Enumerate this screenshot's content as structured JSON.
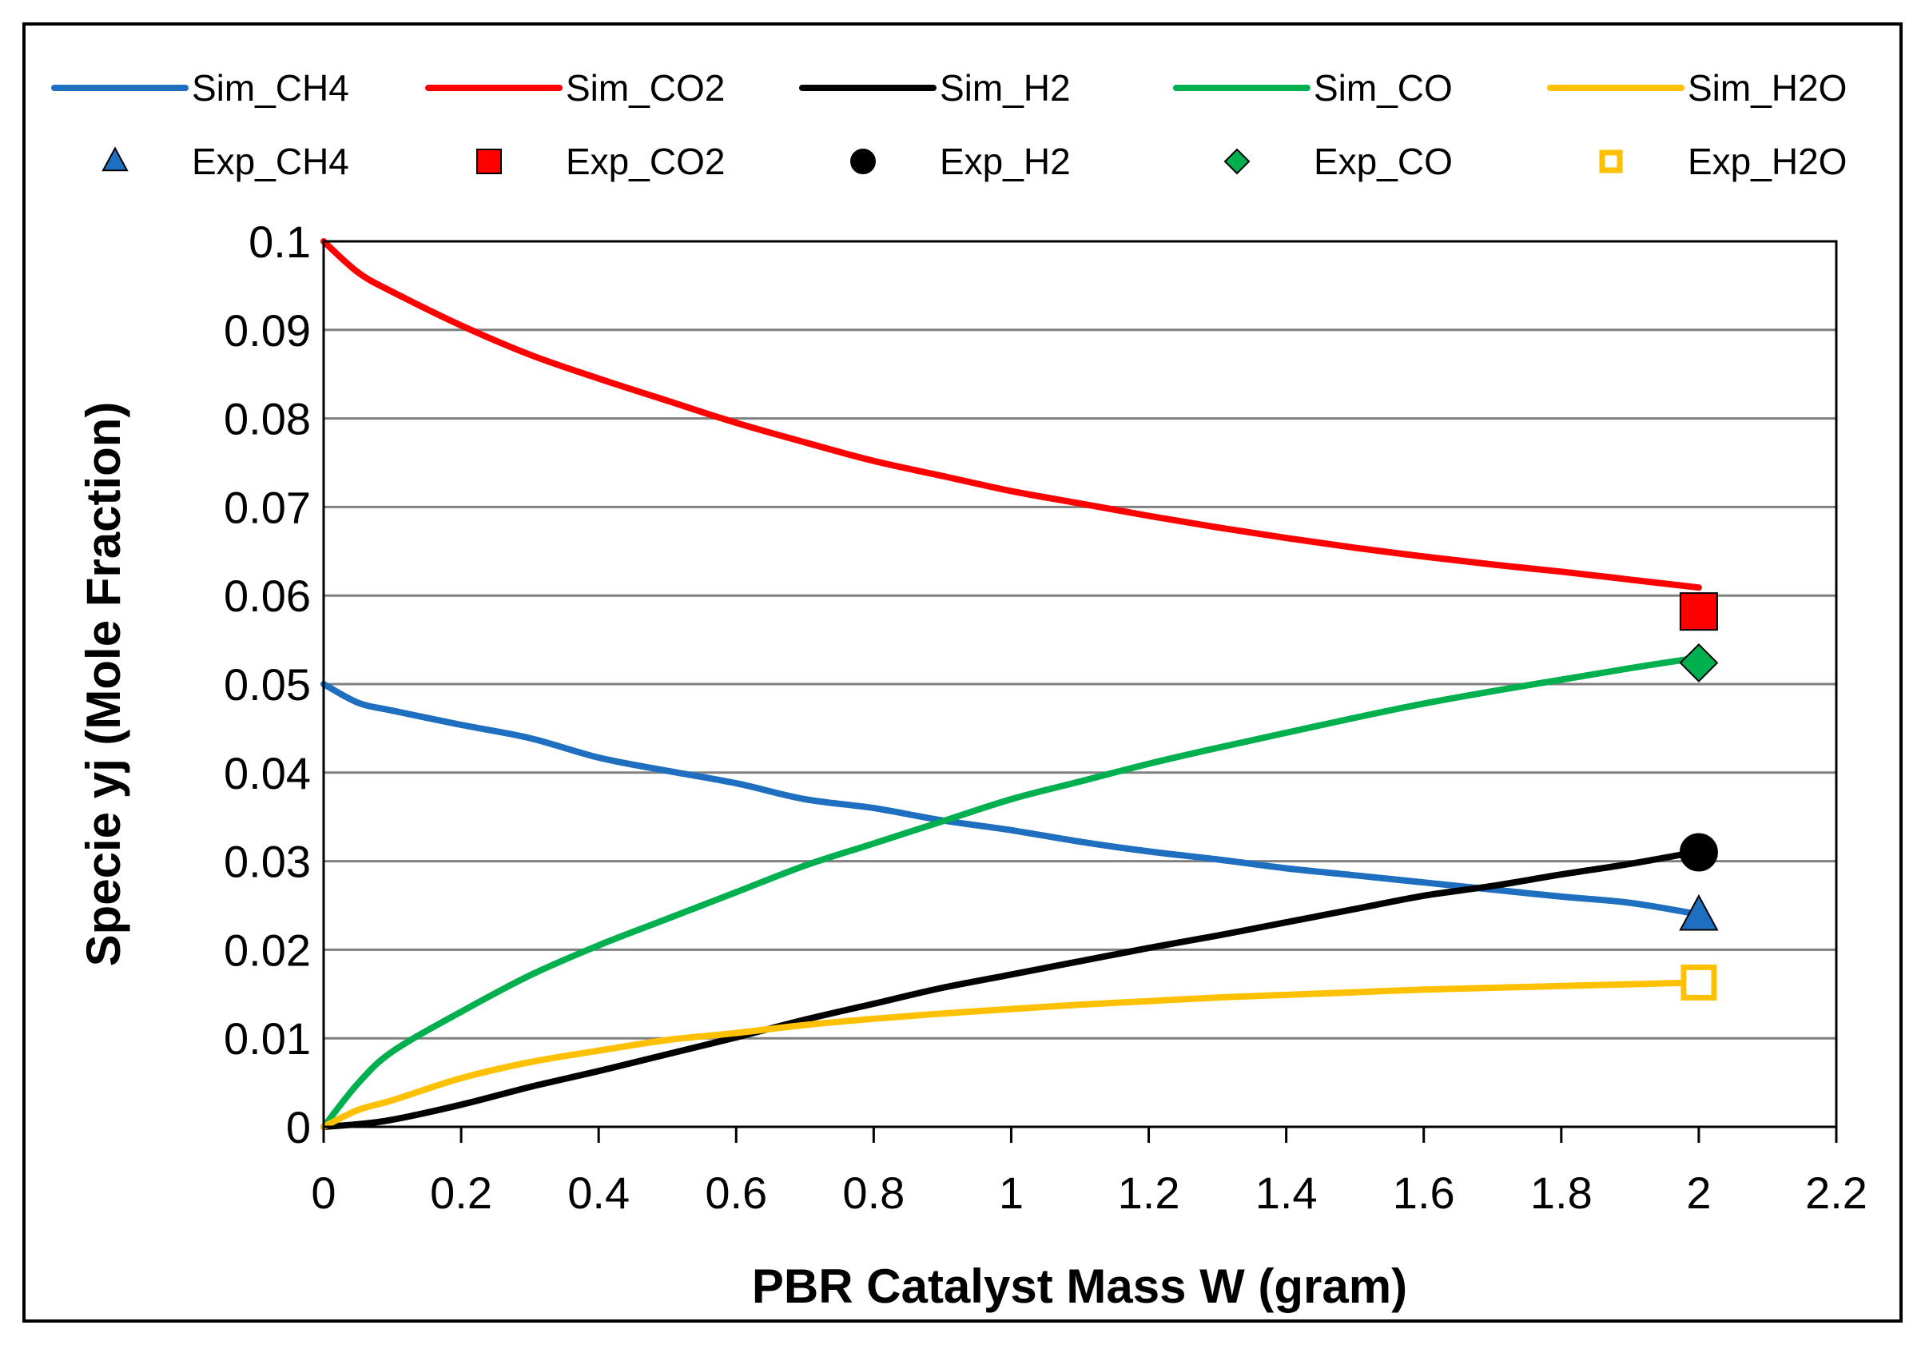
{
  "chart_data": {
    "type": "line",
    "title": "",
    "xlabel": "PBR Catalyst Mass W (gram)",
    "ylabel": "Specie yj (Mole Fraction)",
    "xlim": [
      0,
      2.2
    ],
    "ylim": [
      0,
      0.1
    ],
    "x_ticks": [
      0,
      0.2,
      0.4,
      0.6,
      0.8,
      1,
      1.2,
      1.4,
      1.6,
      1.8,
      2,
      2.2
    ],
    "x_tick_labels": [
      "0",
      "0.2",
      "0.4",
      "0.6",
      "0.8",
      "1",
      "1.2",
      "1.4",
      "1.6",
      "1.8",
      "2",
      "2.2"
    ],
    "y_ticks": [
      0,
      0.01,
      0.02,
      0.03,
      0.04,
      0.05,
      0.06,
      0.07,
      0.08,
      0.09,
      0.1
    ],
    "y_tick_labels": [
      "0",
      "0.01",
      "0.02",
      "0.03",
      "0.04",
      "0.05",
      "0.06",
      "0.07",
      "0.08",
      "0.09",
      "0.1"
    ],
    "grid": "horizontal",
    "legend_position": "top",
    "x": [
      0,
      0.05,
      0.1,
      0.2,
      0.3,
      0.4,
      0.5,
      0.6,
      0.7,
      0.8,
      0.9,
      1.0,
      1.1,
      1.2,
      1.3,
      1.4,
      1.5,
      1.6,
      1.7,
      1.8,
      1.9,
      2.0
    ],
    "series": [
      {
        "name": "Sim_CH4",
        "kind": "line",
        "color": "#1F6FC1",
        "values": [
          0.05,
          0.0479,
          0.047,
          0.0454,
          0.0439,
          0.0417,
          0.0402,
          0.0388,
          0.037,
          0.036,
          0.0346,
          0.0335,
          0.0322,
          0.0311,
          0.0302,
          0.0292,
          0.0284,
          0.0276,
          0.0268,
          0.026,
          0.0253,
          0.024
        ]
      },
      {
        "name": "Sim_CO2",
        "kind": "line",
        "color": "#FF0000",
        "values": [
          0.1,
          0.0965,
          0.0943,
          0.0905,
          0.0872,
          0.0845,
          0.082,
          0.0795,
          0.0773,
          0.0752,
          0.0735,
          0.0718,
          0.0704,
          0.069,
          0.0677,
          0.0665,
          0.0654,
          0.0644,
          0.0635,
          0.0627,
          0.0618,
          0.0609
        ]
      },
      {
        "name": "Sim_H2",
        "kind": "line",
        "color": "#000000",
        "values": [
          0.0,
          0.0003,
          0.0008,
          0.0025,
          0.0045,
          0.0063,
          0.0082,
          0.0101,
          0.0121,
          0.0139,
          0.0157,
          0.0172,
          0.0187,
          0.0202,
          0.0216,
          0.0231,
          0.0246,
          0.0261,
          0.0272,
          0.0285,
          0.0297,
          0.0311
        ]
      },
      {
        "name": "Sim_CO",
        "kind": "line",
        "color": "#00B04F",
        "values": [
          0.0,
          0.0049,
          0.0085,
          0.013,
          0.0171,
          0.0205,
          0.0235,
          0.0265,
          0.0295,
          0.032,
          0.0345,
          0.037,
          0.039,
          0.041,
          0.0428,
          0.0445,
          0.0462,
          0.0478,
          0.0492,
          0.0505,
          0.0518,
          0.053
        ]
      },
      {
        "name": "Sim_H2O",
        "kind": "line",
        "color": "#FFC000",
        "values": [
          0.0,
          0.0019,
          0.003,
          0.0055,
          0.0073,
          0.0086,
          0.0098,
          0.0106,
          0.0115,
          0.0122,
          0.0128,
          0.0133,
          0.0138,
          0.0142,
          0.0146,
          0.0149,
          0.0152,
          0.0155,
          0.0157,
          0.0159,
          0.0161,
          0.0163
        ]
      },
      {
        "name": "Exp_CH4",
        "kind": "marker",
        "marker": "triangle",
        "color": "#1F6FC1",
        "x": [
          2.0
        ],
        "values": [
          0.0238
        ]
      },
      {
        "name": "Exp_CO2",
        "kind": "marker",
        "marker": "square",
        "color": "#FF0000",
        "x": [
          2.0
        ],
        "values": [
          0.0582
        ]
      },
      {
        "name": "Exp_H2",
        "kind": "marker",
        "marker": "circle",
        "color": "#000000",
        "x": [
          2.0
        ],
        "values": [
          0.031
        ]
      },
      {
        "name": "Exp_CO",
        "kind": "marker",
        "marker": "diamond",
        "color": "#00B04F",
        "x": [
          2.0
        ],
        "values": [
          0.0524
        ]
      },
      {
        "name": "Exp_H2O",
        "kind": "marker",
        "marker": "open-square",
        "color": "#FFC000",
        "x": [
          2.0
        ],
        "values": [
          0.0163
        ]
      }
    ]
  }
}
